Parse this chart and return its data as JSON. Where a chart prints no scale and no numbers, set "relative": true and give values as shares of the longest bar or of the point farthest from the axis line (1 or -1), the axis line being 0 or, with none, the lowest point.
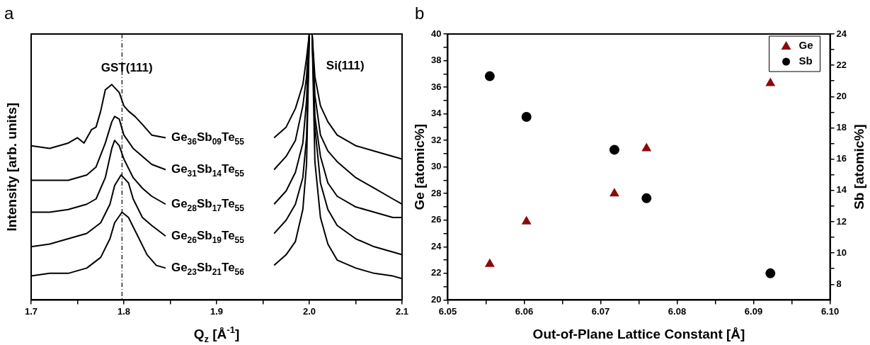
{
  "chart_data": [
    {
      "type": "line",
      "title": "a",
      "xlabel": "Q$_{z}$ [Å$^{-1}$]",
      "ylabel": "Intensity [arb. units]",
      "relative": true,
      "grid": false,
      "legend": false,
      "tick_labels": "x",
      "line_style": "solid",
      "marker": "none",
      "xlim": [
        1.7,
        2.1
      ],
      "xticks": [
        1.7,
        {
          "value": 1.75,
          "label": null
        },
        1.8,
        {
          "value": 1.85,
          "label": null
        },
        1.9,
        {
          "value": 1.95,
          "label": null
        },
        {
          "value": 2,
          "label": "2.0"
        },
        {
          "value": 2.05,
          "label": null
        },
        2.1
      ],
      "ref_lines": [
        {
          "axis": "x",
          "value": 1.798,
          "line_style": "dashed",
          "color": "#000000"
        }
      ],
      "annotations": [
        "GST(111)",
        "Si(111)"
      ],
      "series": [
        {
          "name": "Ge$_{36}$Sb$_{09}$Te$_{55}$",
          "color": "#000000",
          "x": [
            1.7,
            1.72,
            1.74,
            1.75,
            1.757,
            1.765,
            1.77,
            1.775,
            1.78,
            1.787,
            1.795,
            1.8,
            1.805,
            1.812,
            1.82,
            1.83,
            1.845,
            1.9,
            1.962,
            1.975,
            1.985,
            1.993,
            1.997,
            2.0,
            2.003,
            2.006,
            2.012,
            2.02,
            2.03,
            2.05,
            2.07,
            2.09,
            2.1
          ],
          "values": [
            0.58,
            0.57,
            0.59,
            0.61,
            0.59,
            0.64,
            0.65,
            0.71,
            0.79,
            0.81,
            0.78,
            0.73,
            0.71,
            0.69,
            0.66,
            0.62,
            0.61,
            null,
            0.61,
            0.65,
            0.72,
            0.81,
            0.91,
            1,
            1,
            0.84,
            0.73,
            0.67,
            0.62,
            0.58,
            0.56,
            0.54,
            0.53
          ]
        },
        {
          "name": "Ge$_{31}$Sb$_{14}$Te$_{55}$",
          "color": "#000000",
          "x": [
            1.7,
            1.72,
            1.74,
            1.76,
            1.77,
            1.78,
            1.787,
            1.79,
            1.795,
            1.8,
            1.81,
            1.82,
            1.83,
            1.845,
            1.9,
            1.962,
            1.975,
            1.985,
            1.993,
            1.997,
            2.0,
            2.003,
            2.006,
            2.012,
            2.02,
            2.03,
            2.05,
            2.07,
            2.09,
            2.1
          ],
          "values": [
            0.45,
            0.45,
            0.45,
            0.47,
            0.5,
            0.59,
            0.67,
            0.69,
            0.68,
            0.62,
            0.57,
            0.54,
            0.51,
            0.49,
            null,
            0.49,
            0.54,
            0.6,
            0.73,
            0.84,
            1,
            1,
            0.77,
            0.62,
            0.56,
            0.52,
            0.46,
            0.42,
            0.38,
            0.36
          ]
        },
        {
          "name": "Ge$_{28}$Sb$_{17}$Te$_{55}$",
          "color": "#000000",
          "x": [
            1.7,
            1.72,
            1.74,
            1.76,
            1.77,
            1.78,
            1.787,
            1.79,
            1.795,
            1.8,
            1.81,
            1.82,
            1.83,
            1.845,
            1.9,
            1.962,
            1.975,
            1.985,
            1.993,
            1.997,
            2.0,
            2.003,
            2.006,
            2.012,
            2.02,
            2.03,
            2.05,
            2.07,
            2.09,
            2.1
          ],
          "values": [
            0.33,
            0.33,
            0.34,
            0.36,
            0.38,
            0.46,
            0.57,
            0.6,
            0.58,
            0.53,
            0.46,
            0.42,
            0.39,
            0.36,
            null,
            0.36,
            0.41,
            0.48,
            0.59,
            0.75,
            1,
            1,
            0.69,
            0.54,
            0.44,
            0.39,
            0.35,
            0.33,
            0.31,
            0.31
          ]
        },
        {
          "name": "Ge$_{26}$Sb$_{19}$Te$_{55}$",
          "color": "#000000",
          "x": [
            1.7,
            1.72,
            1.74,
            1.76,
            1.775,
            1.785,
            1.79,
            1.797,
            1.805,
            1.81,
            1.82,
            1.83,
            1.845,
            1.9,
            1.962,
            1.975,
            1.985,
            1.993,
            1.997,
            2.0,
            2.003,
            2.006,
            2.012,
            2.02,
            2.03,
            2.05,
            2.07,
            2.09,
            2.1
          ],
          "values": [
            0.2,
            0.21,
            0.23,
            0.25,
            0.29,
            0.36,
            0.43,
            0.47,
            0.44,
            0.38,
            0.31,
            0.28,
            0.24,
            null,
            0.25,
            0.3,
            0.36,
            0.46,
            0.61,
            1,
            1,
            0.65,
            0.44,
            0.34,
            0.28,
            0.23,
            0.2,
            0.18,
            0.17
          ]
        },
        {
          "name": "Ge$_{23}$Sb$_{21}$Te$_{56}$",
          "color": "#000000",
          "x": [
            1.7,
            1.72,
            1.74,
            1.76,
            1.775,
            1.785,
            1.79,
            1.798,
            1.805,
            1.815,
            1.825,
            1.835,
            1.845,
            1.9,
            1.962,
            1.975,
            1.985,
            1.993,
            1.997,
            2.0,
            2.003,
            2.006,
            2.012,
            2.02,
            2.03,
            2.05,
            2.07,
            2.09,
            2.1
          ],
          "values": [
            0.09,
            0.1,
            0.1,
            0.12,
            0.16,
            0.23,
            0.29,
            0.33,
            0.31,
            0.24,
            0.17,
            0.13,
            0.12,
            null,
            0.13,
            0.17,
            0.22,
            0.34,
            0.51,
            1,
            1,
            0.52,
            0.31,
            0.21,
            0.15,
            0.12,
            0.1,
            0.09,
            0.08
          ]
        }
      ]
    },
    {
      "type": "scatter",
      "title": "b",
      "xlabel": "Out-of-Plane Lattice Constant [Å]",
      "ylabel": "Ge [atomic%]",
      "y2label": "Sb [atomic%]",
      "grid": false,
      "legend": "top right",
      "xlim": [
        6.05,
        6.1
      ],
      "xticks": [
        6.05,
        {
          "value": 6.055,
          "label": null
        },
        6.06,
        {
          "value": 6.065,
          "label": null
        },
        6.07,
        {
          "value": 6.075,
          "label": null
        },
        6.08,
        {
          "value": 6.085,
          "label": null
        },
        6.09,
        {
          "value": 6.095,
          "label": null
        },
        {
          "value": 6.1,
          "label": "6.10"
        }
      ],
      "ylim": [
        20,
        40
      ],
      "yticks": [
        20,
        {
          "value": 21,
          "label": null
        },
        22,
        {
          "value": 23,
          "label": null
        },
        24,
        {
          "value": 25,
          "label": null
        },
        26,
        {
          "value": 27,
          "label": null
        },
        28,
        {
          "value": 29,
          "label": null
        },
        30,
        {
          "value": 31,
          "label": null
        },
        32,
        {
          "value": 33,
          "label": null
        },
        34,
        {
          "value": 35,
          "label": null
        },
        36,
        {
          "value": 37,
          "label": null
        },
        38,
        {
          "value": 39,
          "label": null
        },
        40
      ],
      "y2lim": [
        7,
        24
      ],
      "y2ticks": [
        8,
        {
          "value": 9,
          "label": null
        },
        10,
        {
          "value": 11,
          "label": null
        },
        12,
        {
          "value": 13,
          "label": null
        },
        14,
        {
          "value": 15,
          "label": null
        },
        16,
        {
          "value": 17,
          "label": null
        },
        18,
        {
          "value": 19,
          "label": null
        },
        20,
        {
          "value": 21,
          "label": null
        },
        22,
        {
          "value": 23,
          "label": null
        },
        24
      ],
      "series": [
        {
          "name": "Ge",
          "color": "#8b0a0a",
          "marker": "triangle",
          "x": [
            6.0555,
            6.0603,
            6.0718,
            6.076,
            6.0922
          ],
          "values": [
            22.7,
            25.9,
            28.0,
            31.4,
            36.3
          ]
        },
        {
          "name": "Sb",
          "color": "#000000",
          "marker": "circle",
          "axis": "y2",
          "x": [
            6.0555,
            6.0603,
            6.0718,
            6.076,
            6.0922
          ],
          "values": [
            21.3,
            18.7,
            16.6,
            13.5,
            8.7
          ]
        }
      ]
    }
  ]
}
